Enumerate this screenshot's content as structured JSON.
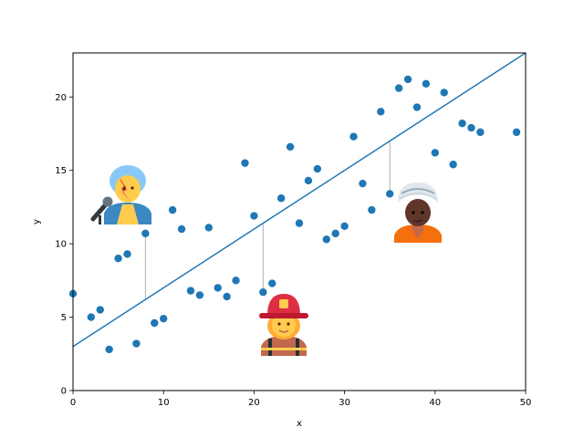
{
  "chart_data": {
    "type": "scatter",
    "title": "",
    "xlabel": "x",
    "ylabel": "y",
    "xlim": [
      0,
      50
    ],
    "ylim": [
      0,
      23
    ],
    "xticks": [
      0,
      10,
      20,
      30,
      40,
      50
    ],
    "yticks": [
      0,
      5,
      10,
      15,
      20
    ],
    "grid": false,
    "point_color": "#1f77b4",
    "line_color": "#1f77b4",
    "points": [
      [
        0,
        6.6
      ],
      [
        2,
        5.0
      ],
      [
        3,
        5.5
      ],
      [
        4,
        2.8
      ],
      [
        5,
        9.0
      ],
      [
        6,
        9.3
      ],
      [
        7,
        3.2
      ],
      [
        8,
        10.7
      ],
      [
        9,
        4.6
      ],
      [
        10,
        4.9
      ],
      [
        11,
        12.3
      ],
      [
        12,
        11.0
      ],
      [
        13,
        6.8
      ],
      [
        14,
        6.5
      ],
      [
        15,
        11.1
      ],
      [
        16,
        7.0
      ],
      [
        17,
        6.4
      ],
      [
        18,
        7.5
      ],
      [
        19,
        15.5
      ],
      [
        20,
        11.9
      ],
      [
        21,
        6.7
      ],
      [
        22,
        7.3
      ],
      [
        23,
        13.1
      ],
      [
        24,
        16.6
      ],
      [
        25,
        11.4
      ],
      [
        26,
        14.3
      ],
      [
        27,
        15.1
      ],
      [
        28,
        10.3
      ],
      [
        29,
        10.7
      ],
      [
        30,
        11.2
      ],
      [
        31,
        17.3
      ],
      [
        32,
        14.1
      ],
      [
        33,
        12.3
      ],
      [
        34,
        19.0
      ],
      [
        35,
        13.4
      ],
      [
        36,
        20.6
      ],
      [
        37,
        21.2
      ],
      [
        38,
        19.3
      ],
      [
        39,
        20.9
      ],
      [
        40,
        16.2
      ],
      [
        41,
        20.3
      ],
      [
        42,
        15.4
      ],
      [
        43,
        18.2
      ],
      [
        44,
        17.9
      ],
      [
        45,
        17.6
      ],
      [
        49,
        17.6
      ]
    ],
    "fit_line": {
      "intercept": 3.0,
      "slope": 0.4
    },
    "annotations": [
      {
        "x": 8,
        "y": 10.7,
        "icon": "singer-emoji-icon"
      },
      {
        "x": 21,
        "y": 6.7,
        "icon": "firefighter-emoji-icon"
      },
      {
        "x": 35,
        "y": 13.4,
        "icon": "person-with-turban-emoji-icon"
      }
    ]
  }
}
